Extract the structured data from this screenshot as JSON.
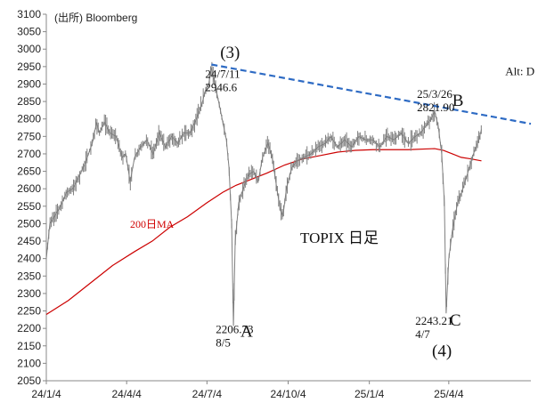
{
  "source_note": "(出所) Bloomberg",
  "chart_data": {
    "type": "line",
    "title": "TOPIX 日足",
    "xlabel": "",
    "ylabel": "",
    "ylim": [
      2050,
      3100
    ],
    "yticks": [
      2050,
      2100,
      2150,
      2200,
      2250,
      2300,
      2350,
      2400,
      2450,
      2500,
      2550,
      2600,
      2650,
      2700,
      2750,
      2800,
      2850,
      2900,
      2950,
      3000,
      3050,
      3100
    ],
    "x_tick_labels": [
      "24/1/4",
      "24/4/4",
      "24/7/4",
      "24/10/4",
      "25/1/4",
      "25/4/4"
    ],
    "x_tick_days": [
      0,
      91,
      182,
      274,
      366,
      456
    ],
    "xlim_days": [
      0,
      549
    ],
    "grid": false,
    "series": [
      {
        "name": "",
        "color": "#7f7f7f",
        "style": "daily-candle",
        "points": [
          [
            0,
            2400
          ],
          [
            4,
            2500
          ],
          [
            9,
            2520
          ],
          [
            16,
            2550
          ],
          [
            23,
            2590
          ],
          [
            30,
            2600
          ],
          [
            38,
            2640
          ],
          [
            45,
            2680
          ],
          [
            52,
            2730
          ],
          [
            57,
            2790
          ],
          [
            60,
            2760
          ],
          [
            66,
            2790
          ],
          [
            72,
            2760
          ],
          [
            79,
            2750
          ],
          [
            86,
            2690
          ],
          [
            90,
            2700
          ],
          [
            95,
            2620
          ],
          [
            100,
            2690
          ],
          [
            107,
            2720
          ],
          [
            114,
            2740
          ],
          [
            121,
            2700
          ],
          [
            128,
            2760
          ],
          [
            135,
            2720
          ],
          [
            142,
            2750
          ],
          [
            149,
            2730
          ],
          [
            156,
            2760
          ],
          [
            163,
            2760
          ],
          [
            170,
            2800
          ],
          [
            176,
            2840
          ],
          [
            180,
            2880
          ],
          [
            184,
            2900
          ],
          [
            187,
            2946.6
          ],
          [
            191,
            2900
          ],
          [
            196,
            2840
          ],
          [
            200,
            2790
          ],
          [
            204,
            2740
          ],
          [
            207,
            2660
          ],
          [
            210,
            2500
          ],
          [
            212,
            2206.73
          ],
          [
            214,
            2450
          ],
          [
            218,
            2560
          ],
          [
            223,
            2600
          ],
          [
            229,
            2640
          ],
          [
            235,
            2650
          ],
          [
            240,
            2620
          ],
          [
            245,
            2690
          ],
          [
            251,
            2730
          ],
          [
            256,
            2690
          ],
          [
            260,
            2620
          ],
          [
            265,
            2540
          ],
          [
            268,
            2520
          ],
          [
            272,
            2600
          ],
          [
            278,
            2660
          ],
          [
            284,
            2680
          ],
          [
            292,
            2690
          ],
          [
            300,
            2700
          ],
          [
            308,
            2720
          ],
          [
            316,
            2730
          ],
          [
            322,
            2750
          ],
          [
            330,
            2720
          ],
          [
            338,
            2740
          ],
          [
            346,
            2720
          ],
          [
            354,
            2750
          ],
          [
            362,
            2740
          ],
          [
            370,
            2740
          ],
          [
            378,
            2720
          ],
          [
            386,
            2750
          ],
          [
            394,
            2740
          ],
          [
            402,
            2760
          ],
          [
            410,
            2730
          ],
          [
            418,
            2750
          ],
          [
            424,
            2760
          ],
          [
            430,
            2780
          ],
          [
            436,
            2800
          ],
          [
            440,
            2821.9
          ],
          [
            444,
            2780
          ],
          [
            448,
            2700
          ],
          [
            451,
            2560
          ],
          [
            453,
            2243.21
          ],
          [
            456,
            2400
          ],
          [
            460,
            2480
          ],
          [
            466,
            2560
          ],
          [
            472,
            2600
          ],
          [
            478,
            2650
          ],
          [
            484,
            2700
          ],
          [
            490,
            2740
          ],
          [
            493,
            2770
          ]
        ]
      },
      {
        "name": "200日MA",
        "color": "#cc0000",
        "points": [
          [
            0,
            2240
          ],
          [
            25,
            2280
          ],
          [
            50,
            2330
          ],
          [
            75,
            2380
          ],
          [
            100,
            2420
          ],
          [
            120,
            2450
          ],
          [
            140,
            2490
          ],
          [
            160,
            2520
          ],
          [
            182,
            2560
          ],
          [
            200,
            2590
          ],
          [
            215,
            2610
          ],
          [
            230,
            2625
          ],
          [
            250,
            2645
          ],
          [
            270,
            2668
          ],
          [
            290,
            2685
          ],
          [
            310,
            2695
          ],
          [
            330,
            2705
          ],
          [
            350,
            2710
          ],
          [
            370,
            2712
          ],
          [
            390,
            2712
          ],
          [
            410,
            2712
          ],
          [
            430,
            2714
          ],
          [
            440,
            2715
          ],
          [
            450,
            2710
          ],
          [
            460,
            2700
          ],
          [
            470,
            2690
          ],
          [
            480,
            2686
          ],
          [
            493,
            2680
          ]
        ]
      },
      {
        "name": "",
        "color": "#2e6bc4",
        "style": "dashed-trendline",
        "points": [
          [
            187,
            2956
          ],
          [
            549,
            2786
          ]
        ]
      }
    ],
    "annotations": [
      {
        "id": "wave-3",
        "text": "(3)",
        "x": 197,
        "y": 2975,
        "size": "big"
      },
      {
        "id": "peak-2024",
        "lines": [
          "24/7/11",
          "2946.6"
        ],
        "x": 180,
        "y": 2918
      },
      {
        "id": "wave-d",
        "text": "Alt: D",
        "x": 520,
        "y": 2925
      },
      {
        "id": "peak-2025",
        "lines": [
          "25/3/26",
          "2821.90"
        ],
        "x": 420,
        "y": 2860
      },
      {
        "id": "wave-b",
        "text": "B",
        "x": 460,
        "y": 2838,
        "size": "big"
      },
      {
        "id": "low-2024",
        "lines": [
          "2206.73",
          "8/5"
        ],
        "x": 192,
        "y": 2186
      },
      {
        "id": "wave-a",
        "text": "A",
        "x": 220,
        "y": 2176,
        "size": "big"
      },
      {
        "id": "low-2025",
        "lines": [
          "2243.21",
          "4/7"
        ],
        "x": 418,
        "y": 2210
      },
      {
        "id": "wave-c",
        "text": "C",
        "x": 457,
        "y": 2208,
        "size": "big"
      },
      {
        "id": "wave-4",
        "text": "(4)",
        "x": 437,
        "y": 2120,
        "size": "big"
      }
    ]
  }
}
